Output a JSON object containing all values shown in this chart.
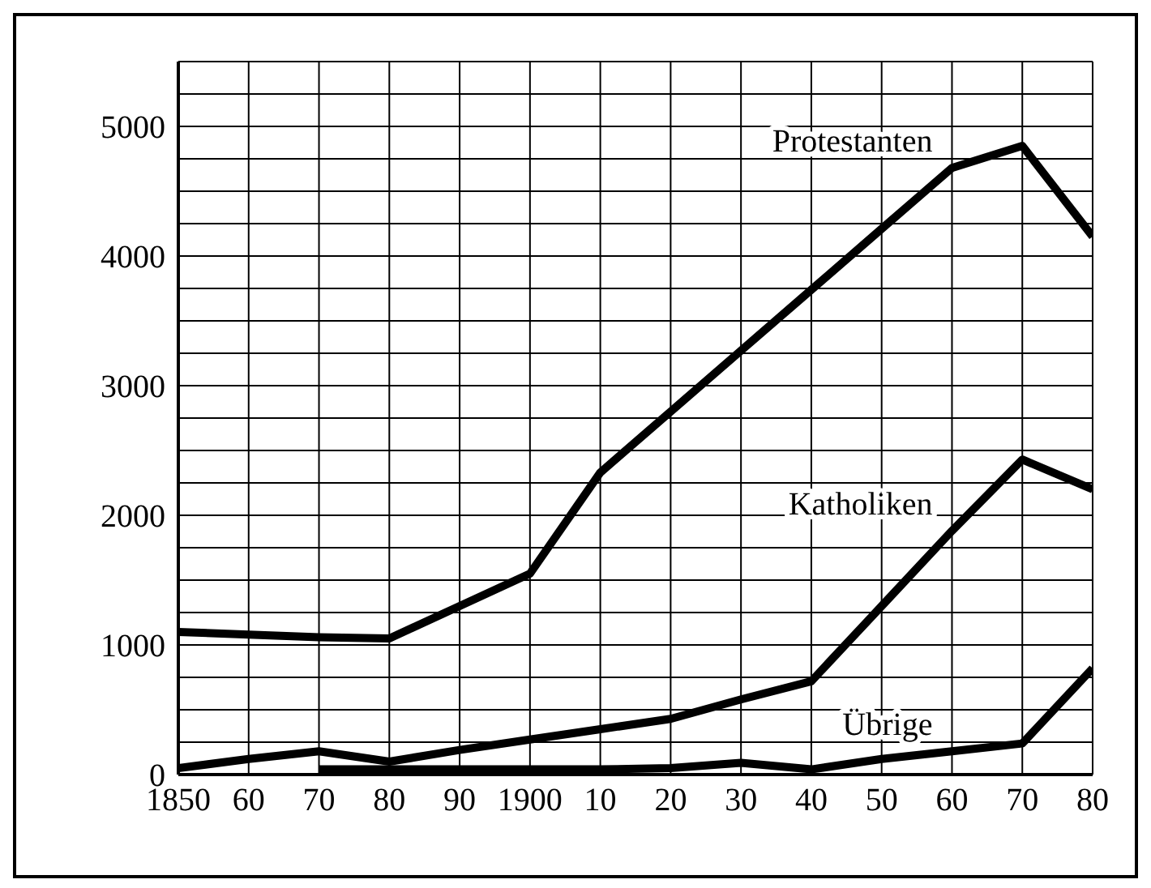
{
  "chart_data": {
    "type": "line",
    "x": [
      1850,
      1860,
      1870,
      1880,
      1890,
      1900,
      1910,
      1920,
      1930,
      1940,
      1950,
      1960,
      1970,
      1980
    ],
    "series": [
      {
        "name": "Protestanten",
        "color": "#000000",
        "values": [
          1100,
          1080,
          1060,
          1050,
          1300,
          1550,
          2330,
          2800,
          3270,
          3740,
          4210,
          4680,
          4850,
          4150
        ]
      },
      {
        "name": "Katholiken",
        "color": "#000000",
        "values": [
          50,
          120,
          180,
          100,
          190,
          270,
          350,
          430,
          580,
          720,
          1300,
          1880,
          2430,
          2200
        ]
      },
      {
        "name": "Übrige",
        "color": "#000000",
        "values": [
          null,
          null,
          40,
          40,
          40,
          40,
          40,
          50,
          90,
          40,
          120,
          180,
          240,
          820
        ]
      }
    ],
    "xlim": [
      1850,
      1980
    ],
    "xticks": [
      1850,
      {
        "value": 1860,
        "label": "60"
      },
      {
        "value": 1870,
        "label": "70"
      },
      {
        "value": 1880,
        "label": "80"
      },
      {
        "value": 1890,
        "label": "90"
      },
      1900,
      {
        "value": 1910,
        "label": "10"
      },
      {
        "value": 1920,
        "label": "20"
      },
      {
        "value": 1930,
        "label": "30"
      },
      {
        "value": 1940,
        "label": "40"
      },
      {
        "value": 1950,
        "label": "50"
      },
      {
        "value": 1960,
        "label": "60"
      },
      {
        "value": 1970,
        "label": "70"
      },
      {
        "value": 1980,
        "label": "80"
      }
    ],
    "ylim": [
      0,
      5500
    ],
    "yticks": [
      0,
      {
        "value": 250,
        "label": null
      },
      1000,
      {
        "value": 500,
        "label": null
      },
      {
        "value": 750,
        "label": null
      },
      {
        "value": 1250,
        "label": null
      },
      {
        "value": 1500,
        "label": null
      },
      {
        "value": 1750,
        "label": null
      },
      2000,
      {
        "value": 2250,
        "label": null
      },
      {
        "value": 2500,
        "label": null
      },
      {
        "value": 2750,
        "label": null
      },
      3000,
      {
        "value": 3250,
        "label": null
      },
      {
        "value": 3500,
        "label": null
      },
      {
        "value": 3750,
        "label": null
      },
      4000,
      {
        "value": 4250,
        "label": null
      },
      {
        "value": 4500,
        "label": null
      },
      {
        "value": 4750,
        "label": null
      },
      5000,
      {
        "value": 5250,
        "label": null
      },
      {
        "value": 5500,
        "label": null
      }
    ],
    "grid": true,
    "marker": "none",
    "line_style": "solid"
  }
}
